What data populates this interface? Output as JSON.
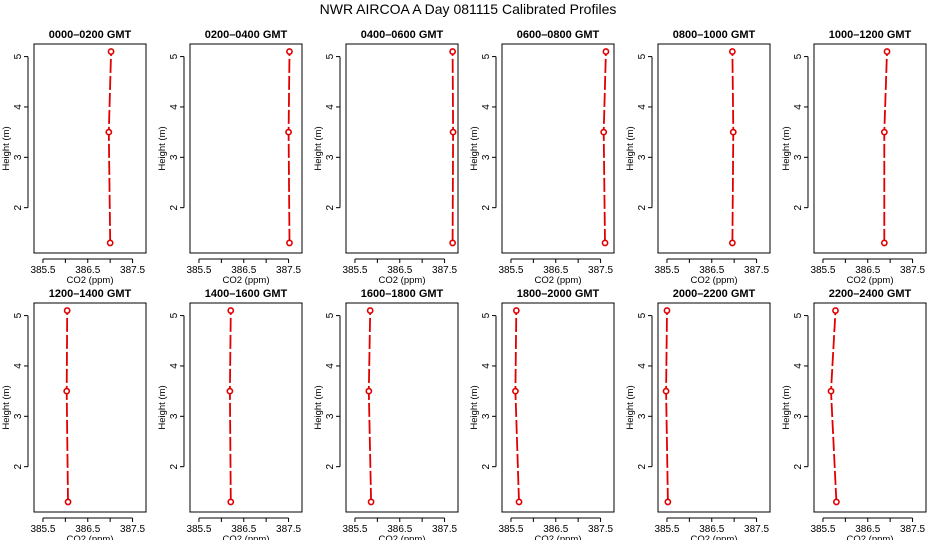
{
  "figure_title": "NWR AIRCOA A  Day 081115  Calibrated Profiles",
  "chart_data": {
    "type": "line",
    "x_label": "CO2 (ppm)",
    "y_label": "Height (m)",
    "xlim": [
      385.3,
      387.8
    ],
    "ylim": [
      1.1,
      5.25
    ],
    "x_ticks": [
      "385.5",
      "386",
      "386.5",
      "387",
      "387.5"
    ],
    "x_tick_values": [
      385.5,
      386.0,
      386.5,
      387.0,
      387.5
    ],
    "y_ticks": [
      "2",
      "3",
      "4",
      "5"
    ],
    "y_tick_values": [
      2,
      3,
      4,
      5
    ],
    "heights": [
      1.3,
      3.5,
      5.1
    ],
    "line_color": "#e00000",
    "panels": [
      {
        "title": "0000–0200 GMT",
        "co2": [
          387.0,
          386.97,
          387.02
        ]
      },
      {
        "title": "0200–0400 GMT",
        "co2": [
          387.52,
          387.5,
          387.52
        ]
      },
      {
        "title": "0400–0600 GMT",
        "co2": [
          387.68,
          387.69,
          387.68
        ]
      },
      {
        "title": "0600–0800 GMT",
        "co2": [
          387.6,
          387.57,
          387.62
        ]
      },
      {
        "title": "0800–1000 GMT",
        "co2": [
          386.96,
          386.98,
          386.96
        ]
      },
      {
        "title": "1000–1200 GMT",
        "co2": [
          386.87,
          386.87,
          386.93
        ]
      },
      {
        "title": "1200–1400 GMT",
        "co2": [
          386.06,
          386.03,
          386.04
        ]
      },
      {
        "title": "1400–1600 GMT",
        "co2": [
          386.21,
          386.19,
          386.21
        ]
      },
      {
        "title": "1600–1800 GMT",
        "co2": [
          385.86,
          385.81,
          385.84
        ]
      },
      {
        "title": "1800–2000 GMT",
        "co2": [
          385.68,
          385.6,
          385.62
        ]
      },
      {
        "title": "2000–2200 GMT",
        "co2": [
          385.52,
          385.48,
          385.5
        ]
      },
      {
        "title": "2200–2400 GMT",
        "co2": [
          385.8,
          385.68,
          385.78
        ]
      }
    ]
  }
}
